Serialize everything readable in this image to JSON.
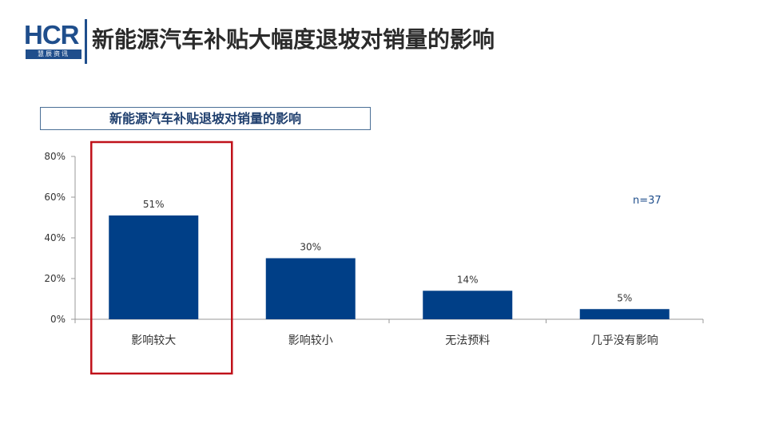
{
  "header": {
    "logo_text": "HCR",
    "logo_sub": "慧辰资讯",
    "title": "新能源汽车补贴大幅度退坡对销量的影响"
  },
  "colors": {
    "bar": "#003f87",
    "highlight_border": "#c0121a",
    "brand": "#1f4e8c"
  },
  "chart_data": {
    "type": "bar",
    "title": "新能源汽车补贴退坡对销量的影响",
    "categories": [
      "影响较大",
      "影响较小",
      "无法预料",
      "几乎没有影响"
    ],
    "values": [
      51,
      30,
      14,
      5
    ],
    "data_labels": [
      "51%",
      "30%",
      "14%",
      "5%"
    ],
    "ylim": [
      0,
      80
    ],
    "yticks": [
      0,
      20,
      40,
      60,
      80
    ],
    "ytick_labels": [
      "0%",
      "20%",
      "40%",
      "60%",
      "80%"
    ],
    "xlabel": "",
    "ylabel": "",
    "grid": false,
    "highlight_category": "影响较大",
    "note": "n=37"
  }
}
